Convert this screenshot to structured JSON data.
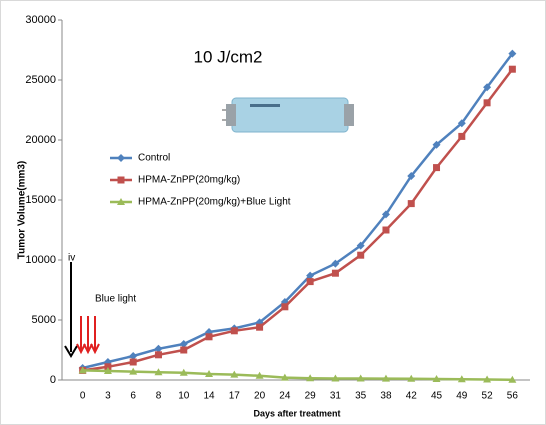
{
  "chart_data": {
    "type": "line",
    "title": "10 J/cm2",
    "y_label": "Tumor Volume(mm3)",
    "x_label": "Days after treatment",
    "annotations": [
      "iv",
      "Blue light"
    ],
    "categories": [
      "0",
      "3",
      "6",
      "8",
      "10",
      "14",
      "17",
      "20",
      "24",
      "29",
      "31",
      "35",
      "38",
      "42",
      "45",
      "49",
      "52",
      "56"
    ],
    "series": [
      {
        "name": "Control",
        "color": "#4f81bd",
        "marker": "diamond",
        "values": [
          1000,
          1500,
          2000,
          2600,
          3000,
          4000,
          4300,
          4800,
          6500,
          8700,
          9700,
          11200,
          13800,
          17000,
          19600,
          21400,
          24400,
          27200
        ]
      },
      {
        "name": "HPMA-ZnPP(20mg/kg)",
        "color": "#c0504d",
        "marker": "square",
        "values": [
          800,
          1100,
          1500,
          2100,
          2500,
          3600,
          4100,
          4400,
          6100,
          8200,
          8900,
          10400,
          12500,
          14700,
          17700,
          20300,
          23100,
          25900
        ]
      },
      {
        "name": "HPMA-ZnPP(20mg/kg)+Blue Light",
        "color": "#9bbb59",
        "marker": "triangle",
        "values": [
          800,
          750,
          700,
          650,
          600,
          500,
          450,
          350,
          200,
          150,
          130,
          120,
          110,
          100,
          80,
          60,
          40,
          20
        ]
      }
    ],
    "ylim": [
      0,
      30000
    ],
    "yticks": [
      0,
      5000,
      10000,
      15000,
      20000,
      25000,
      30000
    ],
    "grid": false
  }
}
